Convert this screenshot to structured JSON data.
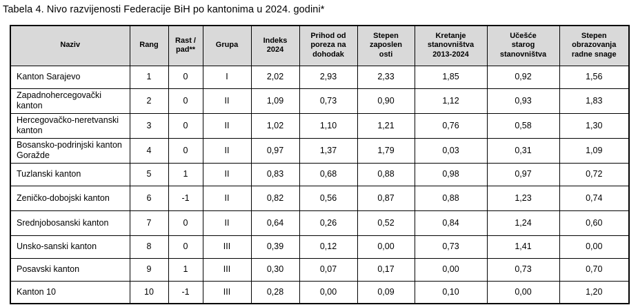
{
  "title": "Tabela 4. Nivo razvijenosti Federacije BiH po kantonima u 2024. godini*",
  "colors": {
    "header_bg": "#d9d9d9",
    "border": "#000000",
    "text": "#000000"
  },
  "table": {
    "columns": [
      {
        "key": "naziv",
        "label": "Naziv",
        "width": 173
      },
      {
        "key": "rang",
        "label": "Rang",
        "width": 56
      },
      {
        "key": "rast-pad",
        "label": "Rast /\npad**",
        "width": 50
      },
      {
        "key": "grupa",
        "label": "Grupa",
        "width": 70
      },
      {
        "key": "indeks-2024",
        "label": "Indeks\n2024",
        "width": 70
      },
      {
        "key": "prihod-od-poreza-na-dohodak",
        "label": "Prihod od\nporeza na\ndohodak",
        "width": 84
      },
      {
        "key": "stepen-zaposlenosti",
        "label": "Stepen\nzaposlen\nosti",
        "width": 83
      },
      {
        "key": "kretanje-stanovnistva-2013-2024",
        "label": "Kretanje\nstanovništva\n2013-2024",
        "width": 105
      },
      {
        "key": "ucesce-starog-stanovnistva",
        "label": "Učešće\nstarog\nstanovništva",
        "width": 105
      },
      {
        "key": "stepen-obrazovanja-radne-snage",
        "label": "Stepen\nobrazovanja\nradne snage",
        "width": 101
      }
    ],
    "rows": [
      {
        "lines": 1,
        "cells": [
          "Kanton Sarajevo",
          "1",
          "0",
          "I",
          "2,02",
          "2,93",
          "2,33",
          "1,85",
          "0,92",
          "1,56"
        ]
      },
      {
        "lines": 2,
        "cells": [
          "Zapadnohercegovački kanton",
          "2",
          "0",
          "II",
          "1,09",
          "0,73",
          "0,90",
          "1,12",
          "0,93",
          "1,83"
        ]
      },
      {
        "lines": 2,
        "cells": [
          "Hercegovačko-neretvanski kanton",
          "3",
          "0",
          "II",
          "1,02",
          "1,10",
          "1,21",
          "0,76",
          "0,58",
          "1,30"
        ]
      },
      {
        "lines": 2,
        "cells": [
          "Bosansko-podrinjski kanton Goražde",
          "4",
          "0",
          "II",
          "0,97",
          "1,37",
          "1,79",
          "0,03",
          "0,31",
          "1,09"
        ]
      },
      {
        "lines": 1,
        "cells": [
          "Tuzlanski kanton",
          "5",
          "1",
          "II",
          "0,83",
          "0,68",
          "0,88",
          "0,98",
          "0,97",
          "0,72"
        ]
      },
      {
        "lines": 2,
        "cells": [
          "Zeničko-dobojski kanton",
          "6",
          "-1",
          "II",
          "0,82",
          "0,56",
          "0,87",
          "0,88",
          "1,23",
          "0,74"
        ]
      },
      {
        "lines": 2,
        "cells": [
          "Srednjobosanski kanton",
          "7",
          "0",
          "II",
          "0,64",
          "0,26",
          "0,52",
          "0,84",
          "1,24",
          "0,60"
        ]
      },
      {
        "lines": 1,
        "cells": [
          "Unsko-sanski kanton",
          "8",
          "0",
          "III",
          "0,39",
          "0,12",
          "0,00",
          "0,73",
          "1,41",
          "0,00"
        ]
      },
      {
        "lines": 1,
        "cells": [
          "Posavski kanton",
          "9",
          "1",
          "III",
          "0,30",
          "0,07",
          "0,17",
          "0,00",
          "0,73",
          "0,70"
        ]
      },
      {
        "lines": 1,
        "cells": [
          "Kanton 10",
          "10",
          "-1",
          "III",
          "0,28",
          "0,00",
          "0,09",
          "0,10",
          "0,00",
          "1,20"
        ]
      }
    ]
  }
}
